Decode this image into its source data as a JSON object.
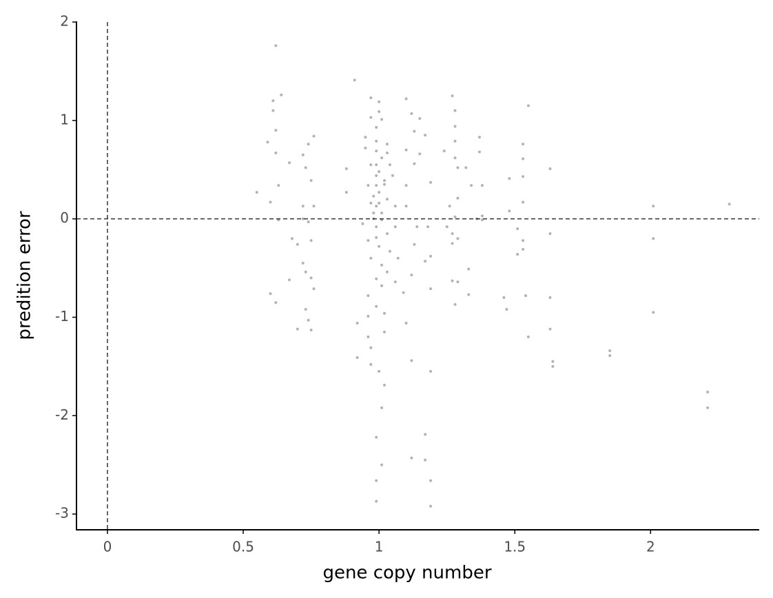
{
  "chart_data": {
    "type": "scatter",
    "x_label": "gene copy number",
    "y_label": "predition error",
    "xlim": [
      -0.114,
      2.4
    ],
    "ylim": [
      -3.16,
      2.0
    ],
    "xticks": [
      0,
      0.5,
      1,
      1.5,
      2
    ],
    "yticks": [
      -3,
      -2,
      -1,
      0,
      1,
      2
    ],
    "hlines": [
      0
    ],
    "vlines": [
      0
    ],
    "color": "#000000",
    "alpha": 0.3,
    "x": [
      0.62,
      0.91,
      0.64,
      0.61,
      0.61,
      0.62,
      0.59,
      0.62,
      0.67,
      0.63,
      0.55,
      0.6,
      0.63,
      0.68,
      0.7,
      0.67,
      0.6,
      0.62,
      0.7,
      0.74,
      0.76,
      0.72,
      0.73,
      0.75,
      0.72,
      0.76,
      0.72,
      0.74,
      0.75,
      0.72,
      0.73,
      0.75,
      0.76,
      0.73,
      0.74,
      0.75,
      0.88,
      0.88,
      0.97,
      1.0,
      1.0,
      0.97,
      1.01,
      0.99,
      0.95,
      0.95,
      0.99,
      1.03,
      1.01,
      0.97,
      1.04,
      0.99,
      1.02,
      0.96,
      1.0,
      1.03,
      0.97,
      0.99,
      1.01,
      0.94,
      0.99,
      1.03,
      0.96,
      1.0,
      1.04,
      0.97,
      1.01,
      1.03,
      0.99,
      1.01,
      0.96,
      0.99,
      1.02,
      0.96,
      0.92,
      0.96,
      1.02,
      0.97,
      0.92,
      0.97,
      1.0,
      1.02,
      1.01,
      0.99,
      1.01,
      0.99,
      0.99,
      0.99,
      1.0,
      0.99,
      0.98,
      1.0,
      1.01,
      0.98,
      0.99,
      0.98,
      1.02,
      0.99,
      1.03,
      1.05,
      1.06,
      1.06,
      1.07,
      1.06,
      1.1,
      1.12,
      1.15,
      1.13,
      1.17,
      1.1,
      1.15,
      1.13,
      1.19,
      1.1,
      1.1,
      1.14,
      1.18,
      1.13,
      1.19,
      1.17,
      1.12,
      1.09,
      1.19,
      1.1,
      1.12,
      1.19,
      1.17,
      1.12,
      1.17,
      1.19,
      1.19,
      1.27,
      1.28,
      1.28,
      1.28,
      1.24,
      1.28,
      1.29,
      1.32,
      1.34,
      1.29,
      1.26,
      1.28,
      1.25,
      1.27,
      1.29,
      1.27,
      1.33,
      1.27,
      1.29,
      1.33,
      1.28,
      1.37,
      1.37,
      1.38,
      1.38,
      1.38,
      1.36,
      1.48,
      1.48,
      1.51,
      1.51,
      1.46,
      1.47,
      1.55,
      1.53,
      1.53,
      1.53,
      1.53,
      1.53,
      1.53,
      1.54,
      1.55,
      1.63,
      1.63,
      1.63,
      1.63,
      1.64,
      1.64,
      1.85,
      1.85,
      2.01,
      2.01,
      2.01,
      2.21,
      2.21,
      2.29
    ],
    "values": [
      1.76,
      1.41,
      1.26,
      1.2,
      1.1,
      0.9,
      0.78,
      0.67,
      0.57,
      0.34,
      0.27,
      0.17,
      -0.01,
      -0.2,
      -0.26,
      -0.62,
      -0.76,
      -0.85,
      -1.12,
      0.76,
      0.84,
      0.65,
      0.52,
      0.39,
      0.13,
      0.13,
      0.0,
      -0.03,
      -0.22,
      -0.45,
      -0.54,
      -0.6,
      -0.71,
      -0.92,
      -1.03,
      -1.13,
      0.51,
      0.27,
      1.23,
      1.19,
      1.09,
      1.03,
      1.01,
      0.93,
      0.83,
      0.72,
      0.79,
      0.76,
      0.62,
      0.55,
      0.55,
      0.44,
      0.39,
      0.34,
      0.27,
      0.2,
      0.16,
      0.13,
      0.06,
      -0.05,
      -0.08,
      -0.15,
      -0.22,
      -0.28,
      -0.33,
      -0.4,
      -0.47,
      -0.54,
      -0.61,
      -0.68,
      -0.78,
      -0.89,
      -0.96,
      -0.99,
      -1.06,
      -1.2,
      -1.15,
      -1.31,
      -1.41,
      -1.48,
      -1.55,
      -1.69,
      -1.92,
      -2.22,
      -2.5,
      -2.66,
      -2.87,
      0.69,
      0.48,
      0.34,
      0.23,
      0.16,
      -0.01,
      0.0,
      -0.19,
      0.06,
      0.35,
      0.55,
      0.67,
      0.44,
      0.13,
      -0.08,
      -0.4,
      -0.64,
      1.22,
      1.07,
      1.02,
      0.89,
      0.85,
      0.7,
      0.66,
      0.56,
      0.37,
      0.34,
      0.13,
      -0.08,
      -0.08,
      -0.26,
      -0.38,
      -0.43,
      -0.57,
      -0.75,
      -0.71,
      -1.06,
      -1.44,
      -1.55,
      -2.19,
      -2.43,
      -2.45,
      -2.66,
      -2.92,
      1.25,
      1.1,
      0.94,
      0.79,
      0.69,
      0.62,
      0.52,
      0.52,
      0.34,
      0.21,
      0.13,
      0.02,
      -0.08,
      -0.15,
      -0.2,
      -0.25,
      -0.51,
      -0.63,
      -0.64,
      -0.77,
      -0.87,
      0.83,
      0.68,
      0.34,
      0.03,
      -0.01,
      0.0,
      0.41,
      0.08,
      -0.1,
      -0.36,
      -0.8,
      -0.92,
      1.15,
      0.76,
      0.61,
      0.43,
      0.17,
      -0.22,
      -0.31,
      -0.78,
      -1.2,
      0.51,
      -0.15,
      -0.8,
      -1.12,
      -1.45,
      -1.5,
      -1.34,
      -1.39,
      0.13,
      -0.2,
      -0.95,
      -1.76,
      -1.92,
      0.15
    ]
  }
}
